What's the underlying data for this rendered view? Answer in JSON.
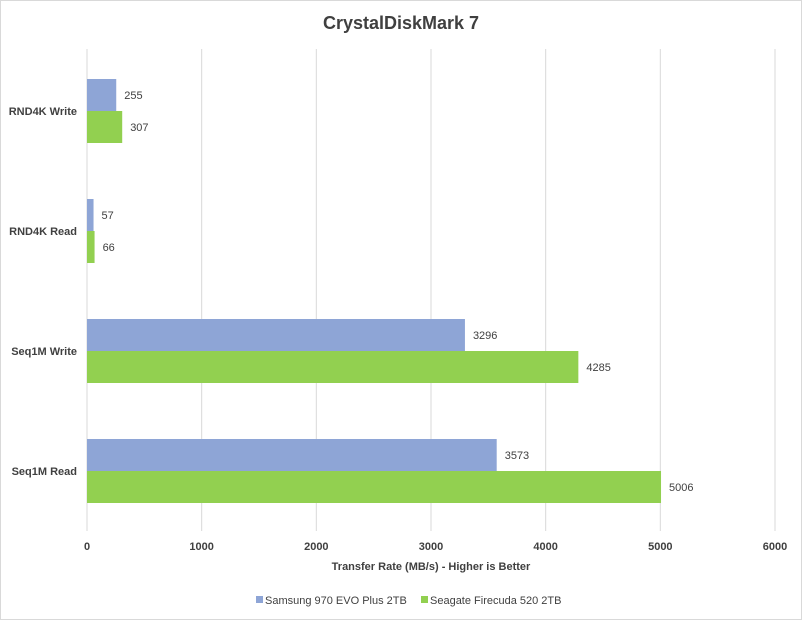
{
  "chart_data": {
    "type": "bar",
    "orientation": "horizontal",
    "title": "CrystalDiskMark 7",
    "xlabel": "Transfer Rate (MB/s) - Higher is Better",
    "ylabel": "",
    "categories": [
      "RND4K Write",
      "RND4K Read",
      "Seq1M Write",
      "Seq1M Read"
    ],
    "series": [
      {
        "name": "Samsung 970 EVO Plus 2TB",
        "color": "#8ea5d6",
        "values": [
          255,
          57,
          3296,
          3573
        ]
      },
      {
        "name": "Seagate Firecuda 520 2TB",
        "color": "#92d050",
        "values": [
          307,
          66,
          4285,
          5006
        ]
      }
    ],
    "xlim": [
      0,
      6000
    ],
    "xticks": [
      "0",
      "1000",
      "2000",
      "3000",
      "4000",
      "5000",
      "6000"
    ],
    "grid": true,
    "legend": "bottom"
  }
}
